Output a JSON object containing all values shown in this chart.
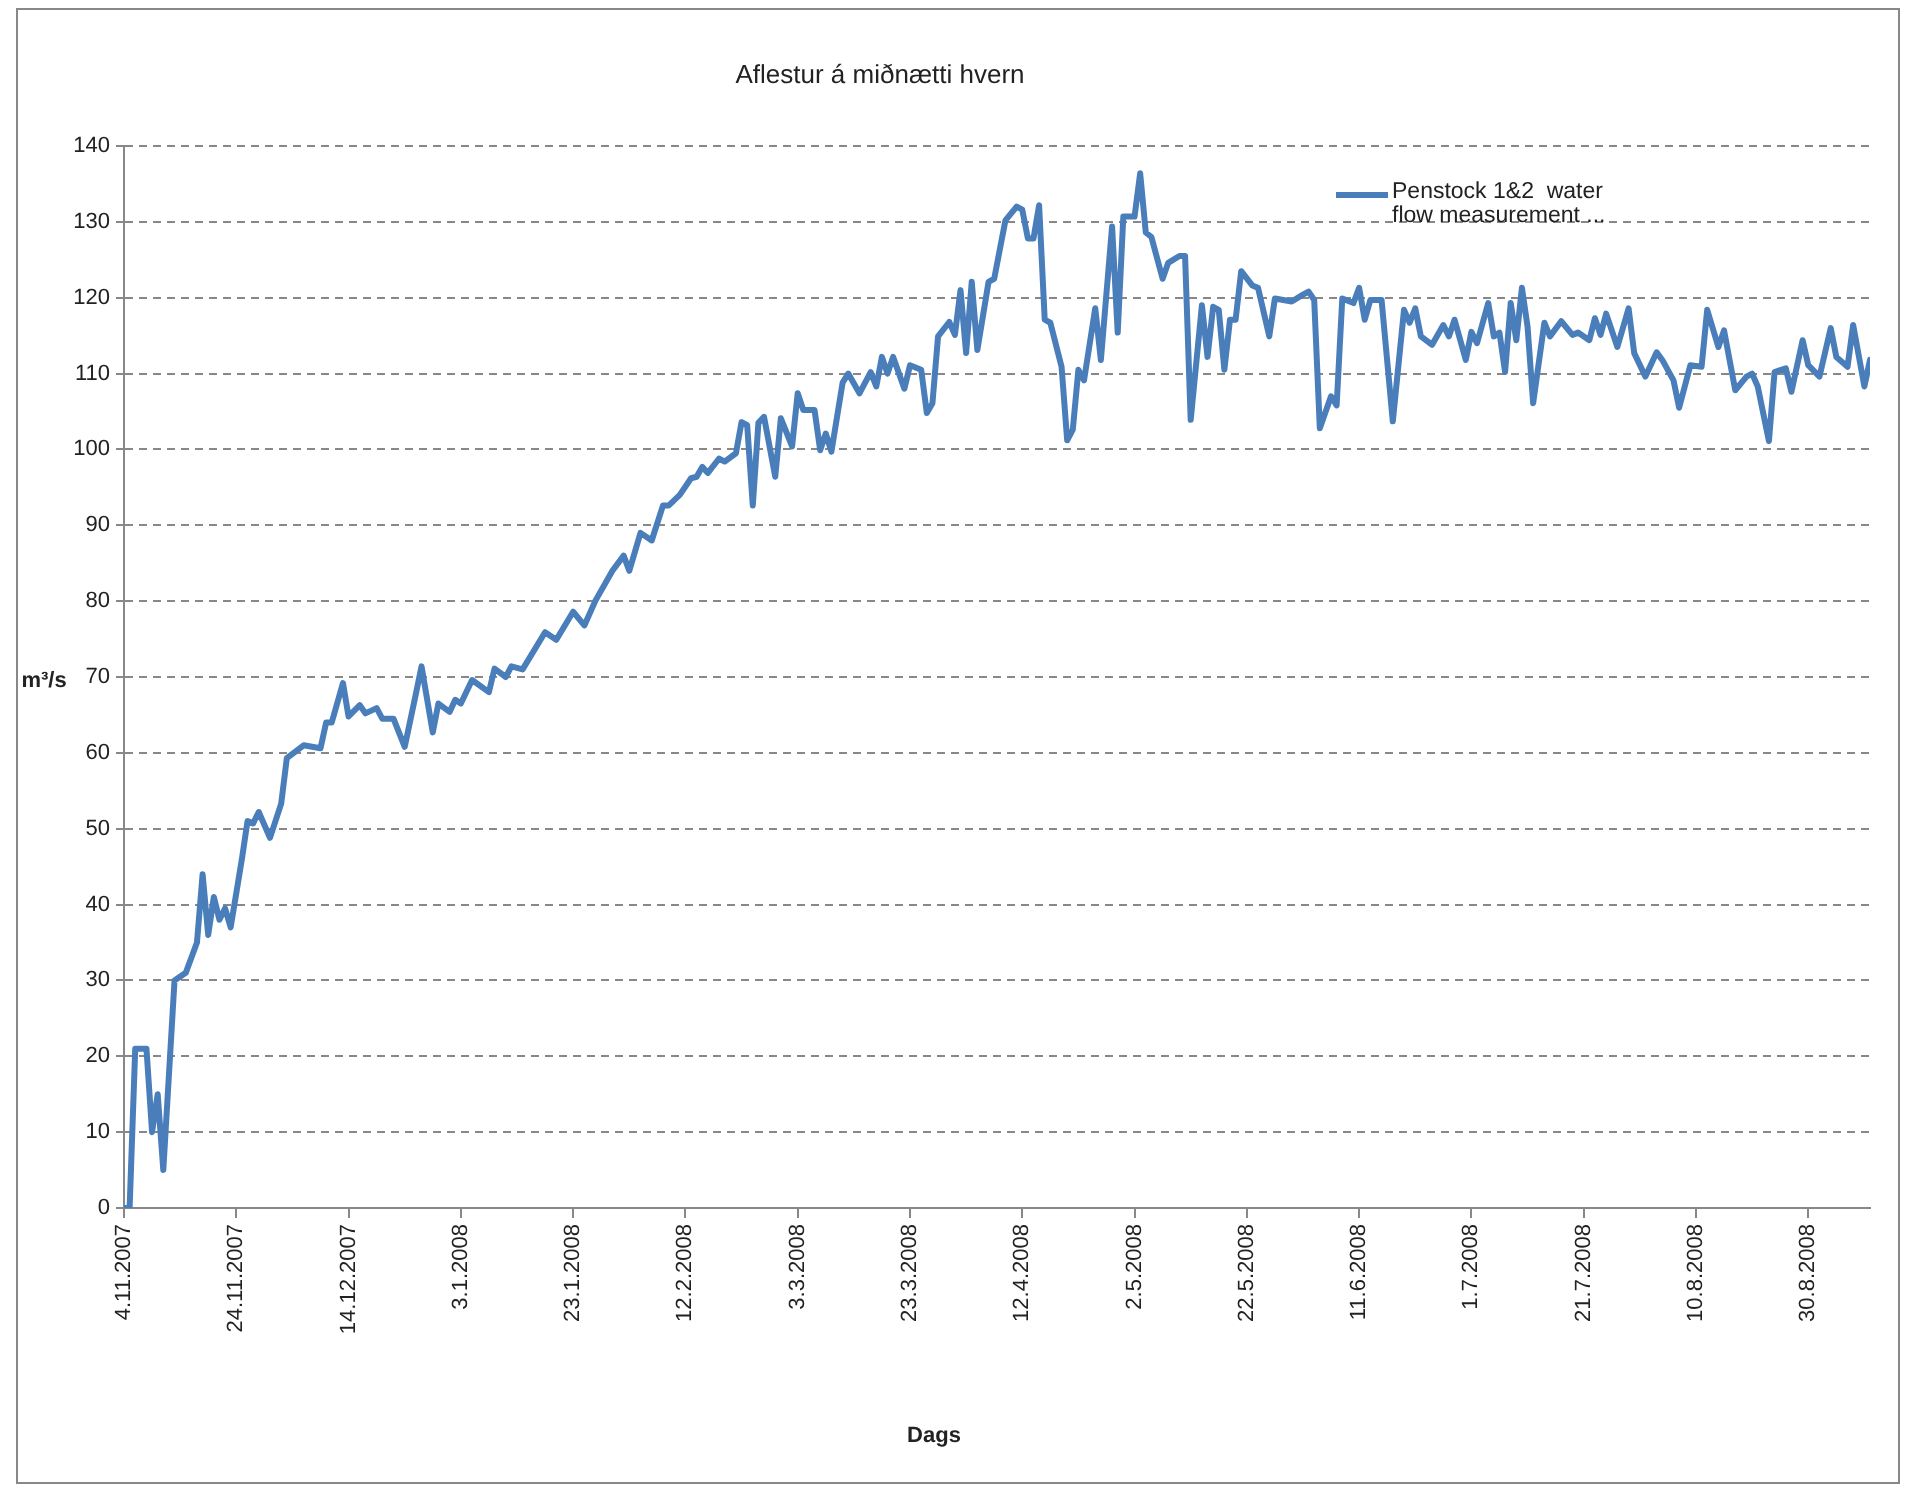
{
  "chart_data": {
    "type": "line",
    "title": "Aflestur á miðnætti hvern",
    "xlabel": "Dags",
    "ylabel": "m³/s",
    "legend": "top right",
    "grid": "y",
    "marker": "none",
    "line_style": "solid",
    "xlim": [
      "2007-11-04",
      "2008-09-10"
    ],
    "xticks": [
      {
        "value": "2007-11-04",
        "label": "4.11.2007"
      },
      {
        "value": "2007-11-24",
        "label": "24.11.2007"
      },
      {
        "value": "2007-12-14",
        "label": "14.12.2007"
      },
      {
        "value": "2008-01-03",
        "label": "3.1.2008"
      },
      {
        "value": "2008-01-23",
        "label": "23.1.2008"
      },
      {
        "value": "2008-02-12",
        "label": "12.2.2008"
      },
      {
        "value": "2008-03-03",
        "label": "3.3.2008"
      },
      {
        "value": "2008-03-23",
        "label": "23.3.2008"
      },
      {
        "value": "2008-04-12",
        "label": "12.4.2008"
      },
      {
        "value": "2008-05-02",
        "label": "2.5.2008"
      },
      {
        "value": "2008-05-22",
        "label": "22.5.2008"
      },
      {
        "value": "2008-06-11",
        "label": "11.6.2008"
      },
      {
        "value": "2008-07-01",
        "label": "1.7.2008"
      },
      {
        "value": "2008-07-21",
        "label": "21.7.2008"
      },
      {
        "value": "2008-08-10",
        "label": "10.8.2008"
      },
      {
        "value": "2008-08-30",
        "label": "30.8.2008"
      }
    ],
    "ylim": [
      0,
      140
    ],
    "yticks": [
      0,
      10,
      20,
      30,
      40,
      50,
      60,
      70,
      80,
      90,
      100,
      110,
      120,
      130,
      140
    ],
    "x": [
      "2007-11-04",
      "2007-11-05",
      "2007-11-06",
      "2007-11-08",
      "2007-11-09",
      "2007-11-10",
      "2007-11-11",
      "2007-11-13",
      "2007-11-15",
      "2007-11-17",
      "2007-11-18",
      "2007-11-19",
      "2007-11-20",
      "2007-11-21",
      "2007-11-22",
      "2007-11-23",
      "2007-11-25",
      "2007-11-26",
      "2007-11-27",
      "2007-11-28",
      "2007-11-30",
      "2007-12-02",
      "2007-12-03",
      "2007-12-06",
      "2007-12-09",
      "2007-12-10",
      "2007-12-11",
      "2007-12-13",
      "2007-12-14",
      "2007-12-16",
      "2007-12-17",
      "2007-12-19",
      "2007-12-20",
      "2007-12-22",
      "2007-12-24",
      "2007-12-26",
      "2007-12-27",
      "2007-12-29",
      "2007-12-30",
      "2008-01-01",
      "2008-01-02",
      "2008-01-03",
      "2008-01-05",
      "2008-01-08",
      "2008-01-09",
      "2008-01-11",
      "2008-01-12",
      "2008-01-14",
      "2008-01-18",
      "2008-01-20",
      "2008-01-23",
      "2008-01-25",
      "2008-01-27",
      "2008-01-30",
      "2008-02-01",
      "2008-02-02",
      "2008-02-04",
      "2008-02-06",
      "2008-02-08",
      "2008-02-09",
      "2008-02-11",
      "2008-02-13",
      "2008-02-14",
      "2008-02-15",
      "2008-02-16",
      "2008-02-18",
      "2008-02-19",
      "2008-02-21",
      "2008-02-22",
      "2008-02-23",
      "2008-02-24",
      "2008-02-25",
      "2008-02-26",
      "2008-02-28",
      "2008-02-29",
      "2008-03-02",
      "2008-03-03",
      "2008-03-04",
      "2008-03-06",
      "2008-03-07",
      "2008-03-08",
      "2008-03-09",
      "2008-03-11",
      "2008-03-12",
      "2008-03-14",
      "2008-03-16",
      "2008-03-17",
      "2008-03-18",
      "2008-03-19",
      "2008-03-20",
      "2008-03-22",
      "2008-03-23",
      "2008-03-25",
      "2008-03-26",
      "2008-03-27",
      "2008-03-28",
      "2008-03-30",
      "2008-03-31",
      "2008-04-01",
      "2008-04-02",
      "2008-04-03",
      "2008-04-04",
      "2008-04-06",
      "2008-04-07",
      "2008-04-09",
      "2008-04-11",
      "2008-04-12",
      "2008-04-13",
      "2008-04-14",
      "2008-04-15",
      "2008-04-16",
      "2008-04-17",
      "2008-04-19",
      "2008-04-20",
      "2008-04-21",
      "2008-04-22",
      "2008-04-23",
      "2008-04-25",
      "2008-04-26",
      "2008-04-28",
      "2008-04-29",
      "2008-04-30",
      "2008-05-02",
      "2008-05-03",
      "2008-05-04",
      "2008-05-05",
      "2008-05-07",
      "2008-05-08",
      "2008-05-10",
      "2008-05-11",
      "2008-05-12",
      "2008-05-14",
      "2008-05-15",
      "2008-05-16",
      "2008-05-17",
      "2008-05-18",
      "2008-05-19",
      "2008-05-20",
      "2008-05-21",
      "2008-05-23",
      "2008-05-24",
      "2008-05-26",
      "2008-05-27",
      "2008-05-30",
      "2008-06-01",
      "2008-06-02",
      "2008-06-03",
      "2008-06-04",
      "2008-06-06",
      "2008-06-07",
      "2008-06-08",
      "2008-06-10",
      "2008-06-11",
      "2008-06-12",
      "2008-06-13",
      "2008-06-15",
      "2008-06-17",
      "2008-06-19",
      "2008-06-20",
      "2008-06-21",
      "2008-06-22",
      "2008-06-24",
      "2008-06-26",
      "2008-06-27",
      "2008-06-28",
      "2008-06-30",
      "2008-07-01",
      "2008-07-02",
      "2008-07-04",
      "2008-07-05",
      "2008-07-06",
      "2008-07-07",
      "2008-07-08",
      "2008-07-09",
      "2008-07-10",
      "2008-07-11",
      "2008-07-12",
      "2008-07-14",
      "2008-07-15",
      "2008-07-17",
      "2008-07-19",
      "2008-07-20",
      "2008-07-22",
      "2008-07-23",
      "2008-07-24",
      "2008-07-25",
      "2008-07-27",
      "2008-07-29",
      "2008-07-30",
      "2008-08-01",
      "2008-08-03",
      "2008-08-04",
      "2008-08-06",
      "2008-08-07",
      "2008-08-09",
      "2008-08-11",
      "2008-08-12",
      "2008-08-14",
      "2008-08-15",
      "2008-08-17",
      "2008-08-19",
      "2008-08-20",
      "2008-08-21",
      "2008-08-23",
      "2008-08-24",
      "2008-08-26",
      "2008-08-27",
      "2008-08-29",
      "2008-08-30",
      "2008-09-01",
      "2008-09-03",
      "2008-09-04",
      "2008-09-06",
      "2008-09-07",
      "2008-09-09",
      "2008-09-10"
    ],
    "series": [
      {
        "name": "Penstock 1&2  water flow measurement ...",
        "color": "#4a7ebb",
        "values": [
          0,
          0,
          21,
          21,
          10,
          15,
          5,
          30,
          31,
          35,
          44,
          36,
          41,
          38,
          39.5,
          37,
          46,
          51,
          50.7,
          52.2,
          48.8,
          53.3,
          59.3,
          61,
          60.6,
          64,
          64,
          69.2,
          64.8,
          66.3,
          65.2,
          65.9,
          64.5,
          64.5,
          60.8,
          67.8,
          71.4,
          62.7,
          66.5,
          65.4,
          67,
          66.5,
          69.6,
          68,
          71.1,
          70,
          71.4,
          71,
          75.9,
          74.9,
          78.6,
          76.8,
          80.1,
          84,
          86,
          84,
          89,
          88,
          92.6,
          92.6,
          94,
          96.2,
          96.4,
          97.7,
          96.9,
          98.8,
          98.4,
          99.5,
          103.6,
          103.2,
          92.6,
          103.5,
          104.3,
          96.4,
          104.1,
          100.4,
          107.4,
          105.2,
          105.2,
          99.9,
          102.1,
          99.7,
          108.8,
          110,
          107.4,
          110.2,
          108.3,
          112.2,
          110,
          112.2,
          108,
          111.1,
          110.5,
          104.8,
          106.1,
          114.9,
          116.8,
          115.1,
          121,
          112.7,
          122.1,
          113.1,
          122.1,
          122.5,
          130.2,
          132,
          131.6,
          127.8,
          127.8,
          132.2,
          117.1,
          116.7,
          110.9,
          101.2,
          102.6,
          110.5,
          109.1,
          118.6,
          111.8,
          129.4,
          115.4,
          130.7,
          130.7,
          136.4,
          128.6,
          128,
          122.5,
          124.6,
          125.5,
          125.5,
          103.9,
          119,
          112.2,
          118.8,
          118.4,
          110.5,
          117.1,
          117.1,
          123.5,
          121.6,
          121.3,
          114.9,
          119.9,
          119.5,
          120.4,
          120.8,
          119.7,
          102.8,
          107,
          105.8,
          119.9,
          119.3,
          121.3,
          117.1,
          119.7,
          119.7,
          103.7,
          118.4,
          116.7,
          118.6,
          114.9,
          113.8,
          116.4,
          114.9,
          117.1,
          111.8,
          115.5,
          114,
          119.3,
          114.9,
          115.4,
          110.2,
          119.3,
          114.4,
          121.3,
          116.2,
          106.1,
          116.7,
          114.9,
          116.9,
          115.1,
          115.4,
          114.4,
          117.3,
          115.1,
          117.9,
          113.5,
          118.6,
          112.7,
          109.6,
          112.8,
          111.8,
          109.1,
          105.5,
          111.1,
          110.9,
          118.4,
          113.5,
          115.7,
          107.8,
          109.6,
          110,
          108.3,
          101.1,
          110.2,
          110.7,
          107.6,
          114.4,
          111.1,
          109.6,
          116,
          112.2,
          110.9,
          116.4,
          108.3,
          111.8
        ]
      }
    ]
  }
}
